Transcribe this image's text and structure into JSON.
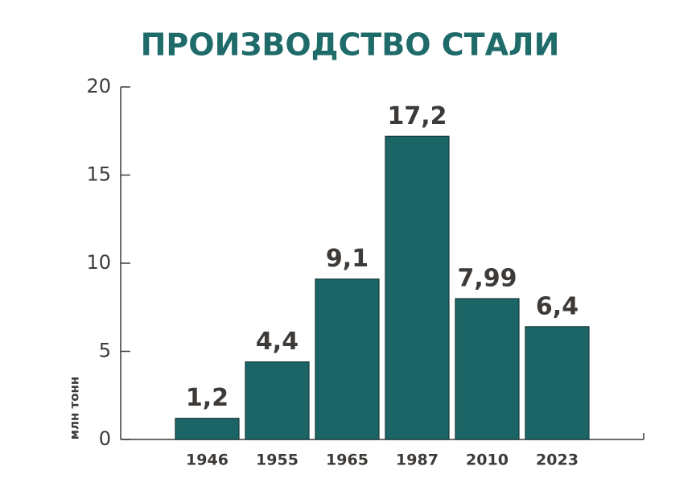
{
  "chart_data": {
    "type": "bar",
    "title": "ПРОИЗВОДСТВО СТАЛИ",
    "y_label": "млн тонн",
    "categories": [
      "1946",
      "1955",
      "1965",
      "1987",
      "2010",
      "2023"
    ],
    "values": [
      1.2,
      4.4,
      9.1,
      17.2,
      7.99,
      6.4
    ],
    "value_labels": [
      "1,2",
      "4,4",
      "9,1",
      "17,2",
      "7,99",
      "6,4"
    ],
    "color": "#1c6566",
    "ylim": [
      0,
      20
    ],
    "yticks": [
      0,
      5,
      10,
      15,
      20
    ]
  }
}
